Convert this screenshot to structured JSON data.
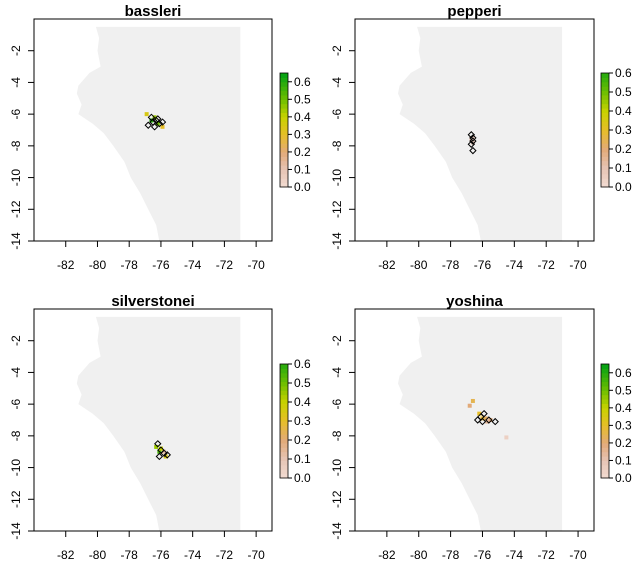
{
  "figure": {
    "xticks": [
      -82,
      -80,
      -78,
      -76,
      -74,
      -72,
      -70
    ],
    "yticks": [
      -2,
      -4,
      -6,
      -8,
      -10,
      -12,
      -14
    ],
    "colorbar_ticks": [
      "0.0",
      "0.1",
      "0.2",
      "0.3",
      "0.4",
      "0.5",
      "0.6"
    ]
  },
  "chart_data": [
    {
      "type": "scatter",
      "title": "bassleri",
      "xlim": [
        -84,
        -69
      ],
      "ylim": [
        -14,
        0
      ],
      "colorbar": {
        "ticks": [
          0.0,
          0.1,
          0.2,
          0.3,
          0.4,
          0.5,
          0.6
        ],
        "range": [
          0,
          0.65
        ]
      },
      "occurrences": [
        {
          "x": -76.6,
          "y": -6.2
        },
        {
          "x": -76.3,
          "y": -6.4
        },
        {
          "x": -76.1,
          "y": -6.6
        },
        {
          "x": -76.5,
          "y": -6.5
        },
        {
          "x": -76.8,
          "y": -6.7
        },
        {
          "x": -76.4,
          "y": -6.8
        },
        {
          "x": -75.9,
          "y": -6.5
        },
        {
          "x": -76.2,
          "y": -6.3
        }
      ],
      "suitability": [
        {
          "x": -76.9,
          "y": -6.0,
          "v": 0.35
        },
        {
          "x": -76.6,
          "y": -6.4,
          "v": 0.6
        },
        {
          "x": -76.2,
          "y": -6.6,
          "v": 0.5
        },
        {
          "x": -75.9,
          "y": -6.8,
          "v": 0.3
        },
        {
          "x": -76.4,
          "y": -6.2,
          "v": 0.45
        }
      ]
    },
    {
      "type": "scatter",
      "title": "pepperi",
      "xlim": [
        -84,
        -69
      ],
      "ylim": [
        -14,
        0
      ],
      "colorbar": {
        "ticks": [
          0.0,
          0.1,
          0.2,
          0.3,
          0.4,
          0.5,
          0.6
        ],
        "range": [
          0,
          0.6
        ]
      },
      "occurrences": [
        {
          "x": -76.7,
          "y": -7.3
        },
        {
          "x": -76.6,
          "y": -7.5
        },
        {
          "x": -76.6,
          "y": -7.7
        },
        {
          "x": -76.7,
          "y": -7.9
        },
        {
          "x": -76.6,
          "y": -8.3
        }
      ],
      "suitability": [
        {
          "x": -76.6,
          "y": -7.5,
          "v": 0.05
        },
        {
          "x": -76.6,
          "y": -7.8,
          "v": 0.08
        },
        {
          "x": -76.7,
          "y": -7.6,
          "v": 0.06
        }
      ]
    },
    {
      "type": "scatter",
      "title": "silverstonei",
      "xlim": [
        -84,
        -69
      ],
      "ylim": [
        -14,
        0
      ],
      "colorbar": {
        "ticks": [
          0.0,
          0.1,
          0.2,
          0.3,
          0.4,
          0.5,
          0.6
        ],
        "range": [
          0,
          0.6
        ]
      },
      "occurrences": [
        {
          "x": -76.2,
          "y": -8.5
        },
        {
          "x": -76.0,
          "y": -8.9
        },
        {
          "x": -75.8,
          "y": -9.1
        },
        {
          "x": -75.6,
          "y": -9.2
        },
        {
          "x": -76.1,
          "y": -9.3
        }
      ],
      "suitability": [
        {
          "x": -76.3,
          "y": -8.7,
          "v": 0.45
        },
        {
          "x": -76.1,
          "y": -9.0,
          "v": 0.55
        },
        {
          "x": -75.8,
          "y": -9.0,
          "v": 0.12
        },
        {
          "x": -75.7,
          "y": -9.3,
          "v": 0.35
        },
        {
          "x": -76.0,
          "y": -8.8,
          "v": 0.4
        }
      ]
    },
    {
      "type": "scatter",
      "title": "yoshina",
      "xlim": [
        -84,
        -69
      ],
      "ylim": [
        -14,
        0
      ],
      "colorbar": {
        "ticks": [
          0.0,
          0.1,
          0.2,
          0.3,
          0.4,
          0.5,
          0.6
        ],
        "range": [
          0,
          0.65
        ]
      },
      "occurrences": [
        {
          "x": -75.9,
          "y": -6.6
        },
        {
          "x": -76.1,
          "y": -6.8
        },
        {
          "x": -76.3,
          "y": -7.0
        },
        {
          "x": -75.6,
          "y": -7.0
        },
        {
          "x": -75.2,
          "y": -7.1
        },
        {
          "x": -76.0,
          "y": -7.1
        }
      ],
      "suitability": [
        {
          "x": -76.6,
          "y": -5.8,
          "v": 0.25
        },
        {
          "x": -76.8,
          "y": -6.1,
          "v": 0.2
        },
        {
          "x": -76.2,
          "y": -6.6,
          "v": 0.3
        },
        {
          "x": -75.8,
          "y": -6.9,
          "v": 0.22
        },
        {
          "x": -75.5,
          "y": -7.0,
          "v": 0.2
        },
        {
          "x": -74.5,
          "y": -8.1,
          "v": 0.05
        },
        {
          "x": -75.7,
          "y": -7.1,
          "v": 0.15
        },
        {
          "x": -76.0,
          "y": -6.9,
          "v": 0.28
        }
      ]
    }
  ]
}
